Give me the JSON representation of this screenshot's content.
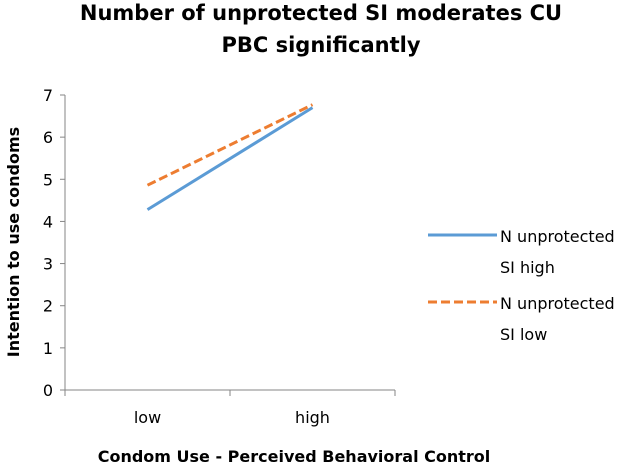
{
  "chart_data": {
    "type": "line",
    "title": [
      "Number of unprotected SI moderates CU",
      "PBC significantly"
    ],
    "xlabel": "Condom Use - Perceived Behavioral Control",
    "ylabel": "Intention to use condoms",
    "categories": [
      "low",
      "high"
    ],
    "ylim": [
      0,
      7
    ],
    "yticks": [
      "0",
      "1",
      "2",
      "3",
      "4",
      "5",
      "6",
      "7"
    ],
    "grid": false,
    "legend_position": "right",
    "series": [
      {
        "name_lines": [
          "N unprotected",
          "SI high"
        ],
        "values": [
          4.28,
          6.7
        ],
        "color": "#5B9BD5",
        "dash": "solid"
      },
      {
        "name_lines": [
          "N unprotected",
          "SI low"
        ],
        "values": [
          4.86,
          6.77
        ],
        "color": "#ED7D31",
        "dash": "dashed"
      }
    ]
  }
}
